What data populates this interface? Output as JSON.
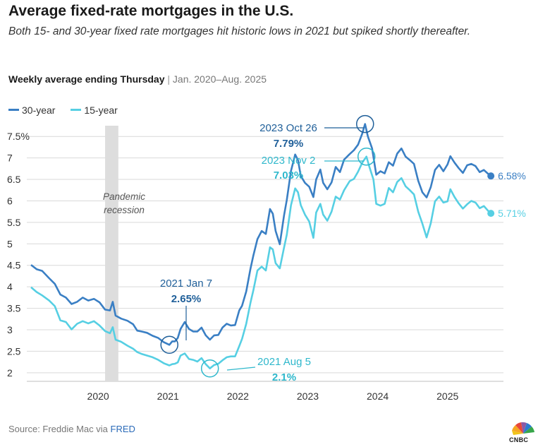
{
  "header": {
    "title": "Average fixed-rate mortgages in the U.S.",
    "subtitle": "Both 15- and 30-year fixed rate mortgages hit historic lows in 2021 but spiked shortly thereafter.",
    "period_bold": "Weekly average ending Thursday",
    "period_separator": "|",
    "period_range": "Jan. 2020–Aug. 2025"
  },
  "footer": {
    "source_prefix": "Source: Freddie Mac via ",
    "source_link": "FRED",
    "logo_text": "CNBC"
  },
  "chart_data": {
    "type": "line",
    "xlim": [
      2019.0,
      2025.8
    ],
    "ylim": [
      1.8,
      7.75
    ],
    "y_ticks": [
      {
        "value": 2,
        "label": "2"
      },
      {
        "value": 2.5,
        "label": "2.5"
      },
      {
        "value": 3,
        "label": "3"
      },
      {
        "value": 3.5,
        "label": "3.5"
      },
      {
        "value": 4,
        "label": "4"
      },
      {
        "value": 4.5,
        "label": "4.5"
      },
      {
        "value": 5,
        "label": "5"
      },
      {
        "value": 5.5,
        "label": "5.5"
      },
      {
        "value": 6,
        "label": "6"
      },
      {
        "value": 6.5,
        "label": "6.5"
      },
      {
        "value": 7,
        "label": "7"
      },
      {
        "value": 7.5,
        "label": "7.5%"
      }
    ],
    "x_ticks": [
      {
        "value": 2020,
        "label": "2020"
      },
      {
        "value": 2021,
        "label": "2021"
      },
      {
        "value": 2022,
        "label": "2022"
      },
      {
        "value": 2023,
        "label": "2023"
      },
      {
        "value": 2024,
        "label": "2024"
      },
      {
        "value": 2025,
        "label": "2025"
      }
    ],
    "grid": true,
    "legend_position": "top-left",
    "recession": {
      "start": 2020.1,
      "end": 2020.29,
      "label_line1": "Pandemic",
      "label_line2": "recession"
    },
    "series": [
      {
        "name": "30-year",
        "color": "#3a7fc4",
        "end_label": "6.58%",
        "points": [
          [
            2019.04,
            4.51
          ],
          [
            2019.12,
            4.41
          ],
          [
            2019.2,
            4.37
          ],
          [
            2019.3,
            4.2
          ],
          [
            2019.38,
            4.07
          ],
          [
            2019.46,
            3.82
          ],
          [
            2019.54,
            3.75
          ],
          [
            2019.62,
            3.6
          ],
          [
            2019.7,
            3.65
          ],
          [
            2019.78,
            3.75
          ],
          [
            2019.86,
            3.68
          ],
          [
            2019.94,
            3.72
          ],
          [
            2020.02,
            3.64
          ],
          [
            2020.1,
            3.47
          ],
          [
            2020.17,
            3.45
          ],
          [
            2020.21,
            3.65
          ],
          [
            2020.25,
            3.33
          ],
          [
            2020.33,
            3.26
          ],
          [
            2020.42,
            3.21
          ],
          [
            2020.5,
            3.13
          ],
          [
            2020.56,
            2.98
          ],
          [
            2020.62,
            2.96
          ],
          [
            2020.7,
            2.93
          ],
          [
            2020.78,
            2.86
          ],
          [
            2020.86,
            2.81
          ],
          [
            2020.94,
            2.71
          ],
          [
            2021.02,
            2.65
          ],
          [
            2021.06,
            2.73
          ],
          [
            2021.1,
            2.73
          ],
          [
            2021.14,
            2.81
          ],
          [
            2021.18,
            3.02
          ],
          [
            2021.24,
            3.18
          ],
          [
            2021.3,
            3.02
          ],
          [
            2021.36,
            2.96
          ],
          [
            2021.42,
            2.96
          ],
          [
            2021.48,
            3.05
          ],
          [
            2021.54,
            2.87
          ],
          [
            2021.6,
            2.77
          ],
          [
            2021.66,
            2.87
          ],
          [
            2021.72,
            2.88
          ],
          [
            2021.78,
            3.05
          ],
          [
            2021.84,
            3.14
          ],
          [
            2021.9,
            3.1
          ],
          [
            2021.96,
            3.11
          ],
          [
            2022.02,
            3.45
          ],
          [
            2022.06,
            3.56
          ],
          [
            2022.12,
            3.89
          ],
          [
            2022.18,
            4.42
          ],
          [
            2022.22,
            4.72
          ],
          [
            2022.28,
            5.11
          ],
          [
            2022.34,
            5.3
          ],
          [
            2022.4,
            5.23
          ],
          [
            2022.46,
            5.81
          ],
          [
            2022.5,
            5.7
          ],
          [
            2022.54,
            5.3
          ],
          [
            2022.6,
            4.99
          ],
          [
            2022.66,
            5.66
          ],
          [
            2022.7,
            6.02
          ],
          [
            2022.76,
            6.7
          ],
          [
            2022.82,
            7.08
          ],
          [
            2022.86,
            6.95
          ],
          [
            2022.9,
            6.58
          ],
          [
            2022.96,
            6.42
          ],
          [
            2023.02,
            6.33
          ],
          [
            2023.08,
            6.09
          ],
          [
            2023.12,
            6.5
          ],
          [
            2023.18,
            6.73
          ],
          [
            2023.22,
            6.42
          ],
          [
            2023.28,
            6.27
          ],
          [
            2023.34,
            6.43
          ],
          [
            2023.4,
            6.79
          ],
          [
            2023.46,
            6.67
          ],
          [
            2023.52,
            6.96
          ],
          [
            2023.6,
            7.09
          ],
          [
            2023.66,
            7.18
          ],
          [
            2023.72,
            7.31
          ],
          [
            2023.78,
            7.57
          ],
          [
            2023.82,
            7.79
          ],
          [
            2023.86,
            7.5
          ],
          [
            2023.92,
            7.22
          ],
          [
            2023.98,
            6.61
          ],
          [
            2024.04,
            6.69
          ],
          [
            2024.1,
            6.64
          ],
          [
            2024.16,
            6.9
          ],
          [
            2024.22,
            6.82
          ],
          [
            2024.28,
            7.1
          ],
          [
            2024.34,
            7.22
          ],
          [
            2024.4,
            7.03
          ],
          [
            2024.46,
            6.95
          ],
          [
            2024.52,
            6.86
          ],
          [
            2024.58,
            6.47
          ],
          [
            2024.64,
            6.2
          ],
          [
            2024.7,
            6.08
          ],
          [
            2024.76,
            6.32
          ],
          [
            2024.82,
            6.72
          ],
          [
            2024.88,
            6.84
          ],
          [
            2024.94,
            6.69
          ],
          [
            2025.0,
            6.85
          ],
          [
            2025.04,
            7.04
          ],
          [
            2025.1,
            6.89
          ],
          [
            2025.16,
            6.76
          ],
          [
            2025.22,
            6.65
          ],
          [
            2025.28,
            6.83
          ],
          [
            2025.34,
            6.86
          ],
          [
            2025.4,
            6.81
          ],
          [
            2025.46,
            6.67
          ],
          [
            2025.52,
            6.72
          ],
          [
            2025.58,
            6.63
          ],
          [
            2025.62,
            6.58
          ]
        ]
      },
      {
        "name": "15-year",
        "color": "#56cfe3",
        "end_label": "5.71%",
        "points": [
          [
            2019.04,
            3.99
          ],
          [
            2019.12,
            3.88
          ],
          [
            2019.2,
            3.8
          ],
          [
            2019.3,
            3.68
          ],
          [
            2019.38,
            3.55
          ],
          [
            2019.46,
            3.22
          ],
          [
            2019.54,
            3.18
          ],
          [
            2019.62,
            3.01
          ],
          [
            2019.7,
            3.14
          ],
          [
            2019.78,
            3.2
          ],
          [
            2019.86,
            3.15
          ],
          [
            2019.94,
            3.2
          ],
          [
            2020.02,
            3.1
          ],
          [
            2020.1,
            2.97
          ],
          [
            2020.17,
            2.92
          ],
          [
            2020.21,
            3.06
          ],
          [
            2020.25,
            2.77
          ],
          [
            2020.33,
            2.72
          ],
          [
            2020.42,
            2.63
          ],
          [
            2020.5,
            2.56
          ],
          [
            2020.56,
            2.48
          ],
          [
            2020.62,
            2.44
          ],
          [
            2020.7,
            2.4
          ],
          [
            2020.78,
            2.36
          ],
          [
            2020.86,
            2.3
          ],
          [
            2020.94,
            2.22
          ],
          [
            2021.02,
            2.17
          ],
          [
            2021.06,
            2.2
          ],
          [
            2021.1,
            2.21
          ],
          [
            2021.14,
            2.24
          ],
          [
            2021.18,
            2.4
          ],
          [
            2021.24,
            2.45
          ],
          [
            2021.3,
            2.32
          ],
          [
            2021.36,
            2.3
          ],
          [
            2021.42,
            2.26
          ],
          [
            2021.48,
            2.34
          ],
          [
            2021.54,
            2.2
          ],
          [
            2021.6,
            2.1
          ],
          [
            2021.66,
            2.18
          ],
          [
            2021.72,
            2.21
          ],
          [
            2021.78,
            2.29
          ],
          [
            2021.84,
            2.36
          ],
          [
            2021.9,
            2.38
          ],
          [
            2021.96,
            2.38
          ],
          [
            2022.02,
            2.62
          ],
          [
            2022.06,
            2.79
          ],
          [
            2022.12,
            3.14
          ],
          [
            2022.18,
            3.63
          ],
          [
            2022.22,
            3.91
          ],
          [
            2022.28,
            4.38
          ],
          [
            2022.34,
            4.47
          ],
          [
            2022.4,
            4.38
          ],
          [
            2022.46,
            4.92
          ],
          [
            2022.5,
            4.87
          ],
          [
            2022.54,
            4.55
          ],
          [
            2022.6,
            4.43
          ],
          [
            2022.66,
            4.91
          ],
          [
            2022.7,
            5.21
          ],
          [
            2022.76,
            5.9
          ],
          [
            2022.82,
            6.29
          ],
          [
            2022.86,
            6.2
          ],
          [
            2022.9,
            5.9
          ],
          [
            2022.96,
            5.68
          ],
          [
            2023.02,
            5.52
          ],
          [
            2023.08,
            5.14
          ],
          [
            2023.12,
            5.73
          ],
          [
            2023.18,
            5.93
          ],
          [
            2023.22,
            5.68
          ],
          [
            2023.28,
            5.54
          ],
          [
            2023.34,
            5.75
          ],
          [
            2023.4,
            6.1
          ],
          [
            2023.46,
            6.03
          ],
          [
            2023.52,
            6.25
          ],
          [
            2023.6,
            6.46
          ],
          [
            2023.66,
            6.51
          ],
          [
            2023.72,
            6.68
          ],
          [
            2023.78,
            6.89
          ],
          [
            2023.84,
            7.03
          ],
          [
            2023.88,
            6.8
          ],
          [
            2023.94,
            6.5
          ],
          [
            2023.98,
            5.93
          ],
          [
            2024.04,
            5.89
          ],
          [
            2024.1,
            5.93
          ],
          [
            2024.16,
            6.3
          ],
          [
            2024.22,
            6.2
          ],
          [
            2024.28,
            6.44
          ],
          [
            2024.34,
            6.53
          ],
          [
            2024.4,
            6.34
          ],
          [
            2024.46,
            6.25
          ],
          [
            2024.52,
            6.15
          ],
          [
            2024.58,
            5.75
          ],
          [
            2024.64,
            5.47
          ],
          [
            2024.7,
            5.15
          ],
          [
            2024.76,
            5.48
          ],
          [
            2024.82,
            5.99
          ],
          [
            2024.88,
            6.1
          ],
          [
            2024.94,
            5.96
          ],
          [
            2025.0,
            5.99
          ],
          [
            2025.04,
            6.27
          ],
          [
            2025.1,
            6.09
          ],
          [
            2025.16,
            5.94
          ],
          [
            2025.22,
            5.82
          ],
          [
            2025.28,
            5.92
          ],
          [
            2025.34,
            6.0
          ],
          [
            2025.4,
            5.96
          ],
          [
            2025.46,
            5.83
          ],
          [
            2025.52,
            5.88
          ],
          [
            2025.58,
            5.77
          ],
          [
            2025.62,
            5.71
          ]
        ]
      }
    ],
    "annotations": [
      {
        "series": "30-year",
        "x": 2021.02,
        "y": 2.65,
        "line1": "2021 Jan 7",
        "line2": "2.65%"
      },
      {
        "series": "15-year",
        "x": 2021.6,
        "y": 2.1,
        "line1": "2021 Aug 5",
        "line2": "2.1%"
      },
      {
        "series": "30-year",
        "x": 2023.82,
        "y": 7.79,
        "line1": "2023 Oct 26",
        "line2": "7.79%"
      },
      {
        "series": "15-year",
        "x": 2023.84,
        "y": 7.03,
        "line1": "2023 Nov 2",
        "line2": "7.03%"
      }
    ]
  }
}
